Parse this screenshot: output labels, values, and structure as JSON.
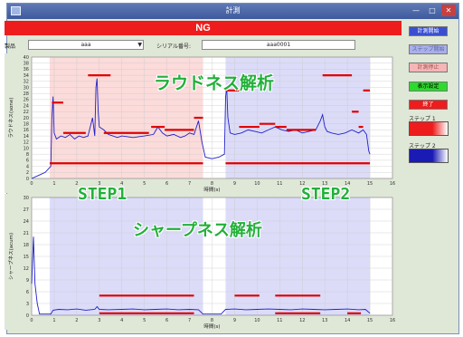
{
  "window": {
    "title": "計測"
  },
  "status": {
    "result": "NG"
  },
  "fields": {
    "product_label": "製品",
    "product_value": "aaa",
    "serial_label": "シリアル番号:",
    "serial_value": "aaa0001"
  },
  "overlays": {
    "loudness": "ラウドネス解析",
    "sharpness": "シャープネス解析",
    "step1": "STEP1",
    "step2": "STEP2"
  },
  "side": {
    "start_label": "計測開始",
    "step_start_label": "ステップ開始",
    "stop_label": "計測停止",
    "view_label": "表示設定",
    "exit_label": "終了",
    "step1_label": "ステップ 1",
    "step2_label": "ステップ 2"
  },
  "colors": {
    "step1": "#ee1c1c",
    "step2": "#1a1ab4",
    "trace": "#2020c8",
    "limit": "#e00000"
  },
  "chart_data": [
    {
      "type": "line",
      "name": "loudness",
      "xlabel": "時間(s)",
      "ylabel": "ラウドネス(sone)",
      "xlim": [
        0,
        16
      ],
      "ylim": [
        0,
        40
      ],
      "xticks": [
        0,
        1,
        2,
        3,
        4,
        5,
        6,
        7,
        8,
        9,
        10,
        11,
        12,
        13,
        14,
        15,
        16
      ],
      "yticks": [
        0,
        2,
        4,
        6,
        8,
        10,
        12,
        14,
        16,
        18,
        20,
        22,
        24,
        26,
        28,
        30,
        32,
        34,
        36,
        38,
        40
      ],
      "regions": [
        {
          "step": 1,
          "x": [
            0.8,
            7.6
          ]
        },
        {
          "step": 2,
          "x": [
            8.6,
            15.0
          ]
        }
      ],
      "series": [
        {
          "x": [
            0,
            0.3,
            0.6,
            0.85,
            0.9,
            0.95,
            1.0,
            1.1,
            1.3,
            1.5,
            1.7,
            1.9,
            2.1,
            2.3,
            2.5,
            2.6,
            2.7,
            2.8,
            2.85,
            2.9,
            2.95,
            3.0,
            3.2,
            3.4,
            3.6,
            3.8,
            4.0,
            4.5,
            5.0,
            5.4,
            5.6,
            5.8,
            6.0,
            6.3,
            6.6,
            6.8,
            7.0,
            7.2,
            7.4,
            7.55,
            7.7,
            8.0,
            8.3,
            8.55,
            8.6,
            8.65,
            8.7,
            8.8,
            9.0,
            9.3,
            9.6,
            9.9,
            10.2,
            10.5,
            10.8,
            11.1,
            11.4,
            11.7,
            12.0,
            12.3,
            12.6,
            12.8,
            12.9,
            13.0,
            13.1,
            13.3,
            13.6,
            13.9,
            14.2,
            14.5,
            14.7,
            14.85,
            14.95,
            15.0
          ],
          "y": [
            0,
            1,
            2,
            4,
            20,
            27,
            15,
            13,
            14,
            13.5,
            14.5,
            13,
            14,
            13.5,
            14,
            17,
            20,
            14,
            30,
            33,
            22,
            17,
            16,
            14.5,
            14,
            13.5,
            14,
            13.5,
            14,
            14.5,
            17,
            15,
            14,
            14.5,
            13.5,
            14,
            15,
            14.5,
            19,
            12,
            7,
            6.5,
            7,
            8,
            27,
            30,
            20,
            15,
            14.5,
            15,
            16,
            15.5,
            15,
            16,
            17,
            16,
            15.5,
            16,
            15,
            15.5,
            16,
            19,
            21,
            17,
            15.5,
            15,
            14.5,
            15,
            16,
            15,
            16,
            14.5,
            9,
            8
          ]
        }
      ],
      "limits": [
        {
          "x": [
            0.8,
            7.6
          ],
          "y": 5
        },
        {
          "x": [
            8.6,
            15.0
          ],
          "y": 5
        },
        {
          "x": [
            0.9,
            1.4
          ],
          "y": 25
        },
        {
          "x": [
            1.4,
            2.4
          ],
          "y": 15
        },
        {
          "x": [
            2.5,
            3.5
          ],
          "y": 34
        },
        {
          "x": [
            3.2,
            5.2
          ],
          "y": 15
        },
        {
          "x": [
            5.3,
            5.9
          ],
          "y": 17
        },
        {
          "x": [
            5.9,
            7.2
          ],
          "y": 16
        },
        {
          "x": [
            7.2,
            7.6
          ],
          "y": 20
        },
        {
          "x": [
            8.6,
            9.2
          ],
          "y": 29
        },
        {
          "x": [
            9.2,
            10.1
          ],
          "y": 17
        },
        {
          "x": [
            10.1,
            10.8
          ],
          "y": 18
        },
        {
          "x": [
            10.8,
            11.3
          ],
          "y": 17
        },
        {
          "x": [
            11.3,
            12.6
          ],
          "y": 16
        },
        {
          "x": [
            12.9,
            14.2
          ],
          "y": 34
        },
        {
          "x": [
            14.2,
            14.5
          ],
          "y": 22
        },
        {
          "x": [
            14.5,
            14.7
          ],
          "y": 17
        },
        {
          "x": [
            14.7,
            15.0
          ],
          "y": 29
        }
      ]
    },
    {
      "type": "line",
      "name": "sharpness",
      "xlabel": "時間(s)",
      "ylabel": "シャープネス(acum)",
      "xlim": [
        0,
        16
      ],
      "ylim": [
        0,
        30
      ],
      "xticks": [
        0,
        1,
        2,
        3,
        4,
        5,
        6,
        7,
        8,
        9,
        10,
        11,
        12,
        13,
        14,
        15,
        16
      ],
      "yticks": [
        0,
        3,
        6,
        9,
        12,
        15,
        18,
        21,
        24,
        27,
        30
      ],
      "regions": [
        {
          "step": 2,
          "x": [
            0.8,
            7.6
          ]
        },
        {
          "step": 2,
          "x": [
            8.6,
            15.0
          ]
        }
      ],
      "series": [
        {
          "x": [
            0,
            0.08,
            0.15,
            0.25,
            0.35,
            0.5,
            0.7,
            0.85,
            0.95,
            1.2,
            1.6,
            2.0,
            2.4,
            2.8,
            2.9,
            3.0,
            3.4,
            4.0,
            4.5,
            5.0,
            5.5,
            6.0,
            6.5,
            7.0,
            7.4,
            7.6,
            8.0,
            8.4,
            8.6,
            9.0,
            9.5,
            10.0,
            10.5,
            11.0,
            11.5,
            12.0,
            12.5,
            13.0,
            13.5,
            14.0,
            14.5,
            14.8,
            15.0
          ],
          "y": [
            8,
            20,
            8,
            3,
            0.3,
            0.3,
            0.3,
            0.3,
            1.3,
            1.5,
            1.4,
            1.6,
            1.3,
            1.5,
            2.2,
            1.5,
            1.4,
            1.5,
            1.6,
            1.4,
            1.5,
            1.6,
            1.4,
            1.5,
            1.4,
            0.3,
            0.3,
            0.3,
            1.5,
            1.6,
            1.4,
            1.5,
            1.6,
            1.5,
            1.4,
            1.6,
            1.5,
            1.4,
            1.5,
            1.6,
            1.4,
            1.5,
            0.5
          ]
        }
      ],
      "limits": [
        {
          "x": [
            3.0,
            7.2
          ],
          "y": 5
        },
        {
          "x": [
            3.0,
            7.2
          ],
          "y": 0.5
        },
        {
          "x": [
            9.0,
            10.1
          ],
          "y": 5
        },
        {
          "x": [
            10.8,
            12.8
          ],
          "y": 5
        },
        {
          "x": [
            10.8,
            12.8
          ],
          "y": 0.5
        },
        {
          "x": [
            14.0,
            14.6
          ],
          "y": 0.5
        }
      ]
    }
  ]
}
